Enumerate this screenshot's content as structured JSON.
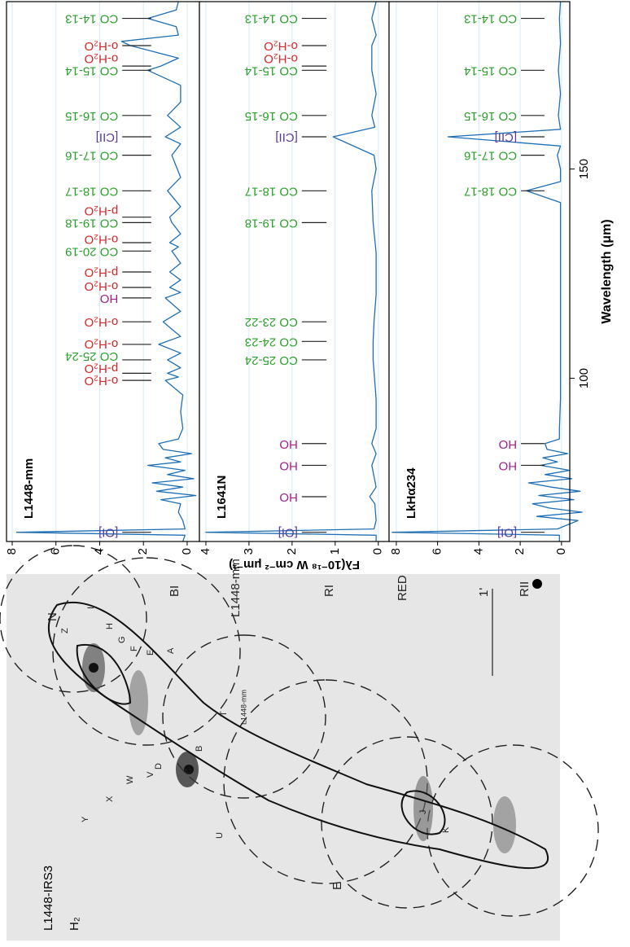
{
  "chart_data": [
    {
      "type": "line",
      "title": "L1448-mm",
      "xlim": [
        61,
        190
      ],
      "ylim": [
        -0.56,
        8.26
      ],
      "yticks": [
        0,
        2,
        4,
        6,
        8
      ],
      "grid": true,
      "series": [
        {
          "color": "#1f6fb5",
          "x": [
            61,
            62.5,
            63.2,
            64,
            66,
            68,
            70,
            71,
            72,
            73,
            74,
            75,
            76,
            77,
            78,
            79.2,
            80,
            81,
            82,
            83,
            84.4,
            85.5,
            88,
            92,
            96,
            99.5,
            100.3,
            101.2,
            102.5,
            104.4,
            106,
            108.1,
            110,
            113.5,
            116,
            119.2,
            120.5,
            121.7,
            123.5,
            125.4,
            127.5,
            130.4,
            131.4,
            132.4,
            134.5,
            137.2,
            138.5,
            141,
            144.8,
            148,
            153.3,
            156,
            157.7,
            160,
            162.8,
            166,
            170,
            173.6,
            174.6,
            176.5,
            179.5,
            180.5,
            182,
            184,
            186,
            188,
            190
          ],
          "values": [
            0.2,
            0.1,
            7.8,
            0.1,
            0.2,
            0.4,
            0.3,
            1.2,
            -0.4,
            1.4,
            0.2,
            1.6,
            -0.3,
            0.9,
            0.1,
            1.8,
            0.3,
            1.0,
            -0.2,
            1.1,
            1.3,
            0.4,
            0.2,
            0.3,
            0.2,
            1.0,
            0.4,
            0.9,
            0.3,
            0.9,
            0.3,
            1.3,
            0.3,
            1.1,
            0.3,
            1.0,
            0.3,
            0.8,
            0.3,
            0.8,
            0.3,
            0.7,
            0.4,
            0.8,
            0.3,
            0.7,
            0.8,
            0.3,
            0.9,
            0.3,
            0.7,
            0.3,
            1.0,
            0.3,
            0.9,
            0.3,
            0.3,
            1.8,
            1.2,
            0.4,
            2.6,
            3.0,
            0.4,
            0.5,
            1.8,
            0.5,
            0.4
          ]
        }
      ],
      "annotations": [
        {
          "x": 63.2,
          "label": "[OI]",
          "color": "#5b3a9e"
        },
        {
          "x": 99.5,
          "label": "o-H₂O",
          "color": "#d62728"
        },
        {
          "x": 101.2,
          "label": "p-H₂O",
          "color": "#d62728"
        },
        {
          "x": 104.4,
          "label": "CO 25-24",
          "color": "#2ca02c"
        },
        {
          "x": 108.1,
          "label": "o-H₂O",
          "color": "#d62728"
        },
        {
          "x": 113.5,
          "label": "o-H₂O",
          "color": "#d62728"
        },
        {
          "x": 119.2,
          "label": "HO",
          "color": "#a0228c"
        },
        {
          "x": 121.7,
          "label": "o-H₂O",
          "color": "#d62728"
        },
        {
          "x": 125.4,
          "label": "p-H₂O",
          "color": "#d62728"
        },
        {
          "x": 130.4,
          "label": "CO 20-19",
          "color": "#2ca02c"
        },
        {
          "x": 132.4,
          "label": "o-H₂O",
          "color": "#d62728"
        },
        {
          "x": 137.2,
          "label": "CO 19-18",
          "color": "#2ca02c"
        },
        {
          "x": 138.5,
          "label": "p-H₂O",
          "color": "#d62728"
        },
        {
          "x": 144.8,
          "label": "CO 18-17",
          "color": "#2ca02c"
        },
        {
          "x": 153.3,
          "label": "CO 17-16",
          "color": "#2ca02c"
        },
        {
          "x": 157.7,
          "label": "[CII]",
          "color": "#5b3a9e"
        },
        {
          "x": 162.8,
          "label": "CO 16-15",
          "color": "#2ca02c"
        },
        {
          "x": 173.6,
          "label": "CO 15-14",
          "color": "#2ca02c"
        },
        {
          "x": 174.6,
          "label": "o-H₂O",
          "color": "#d62728"
        },
        {
          "x": 179.5,
          "label": "o-H₂O",
          "color": "#d62728"
        },
        {
          "x": 186.0,
          "label": "CO 14-13",
          "color": "#2ca02c"
        }
      ]
    },
    {
      "type": "line",
      "title": "L1641N",
      "xlim": [
        61,
        190
      ],
      "ylim": [
        -0.25,
        4.15
      ],
      "yticks": [
        0,
        1,
        2,
        3,
        4
      ],
      "grid": true,
      "ylabel": "Fλ(10⁻¹⁸ W cm⁻² μm⁻¹)",
      "series": [
        {
          "color": "#1f6fb5",
          "x": [
            61,
            62.5,
            63.2,
            64,
            66,
            70,
            71.7,
            74,
            79.2,
            82,
            84.4,
            88,
            95,
            104.4,
            108.8,
            113.5,
            120,
            130,
            137.2,
            144.8,
            150,
            153.3,
            157.7,
            160,
            162.8,
            168,
            173.6,
            174.6,
            179.5,
            182,
            186,
            190
          ],
          "values": [
            0.05,
            0.05,
            4.0,
            0.1,
            0.05,
            0.08,
            0.2,
            0.05,
            0.15,
            0.05,
            0.15,
            0.05,
            0.05,
            0.12,
            0.12,
            0.1,
            0.05,
            0.05,
            0.12,
            0.15,
            0.05,
            0.1,
            1.05,
            0.08,
            0.15,
            0.05,
            0.15,
            0.15,
            0.15,
            0.05,
            0.15,
            0.05
          ]
        }
      ],
      "annotations": [
        {
          "x": 63.2,
          "label": "[OI]",
          "color": "#5b3a9e"
        },
        {
          "x": 71.7,
          "label": "HO",
          "color": "#a0228c"
        },
        {
          "x": 79.2,
          "label": "HO",
          "color": "#a0228c"
        },
        {
          "x": 84.4,
          "label": "HO",
          "color": "#a0228c"
        },
        {
          "x": 104.4,
          "label": "CO 25-24",
          "color": "#2ca02c"
        },
        {
          "x": 108.8,
          "label": "CO 24-23",
          "color": "#2ca02c"
        },
        {
          "x": 113.5,
          "label": "CO 23-22",
          "color": "#2ca02c"
        },
        {
          "x": 137.2,
          "label": "CO 19-18",
          "color": "#2ca02c"
        },
        {
          "x": 144.8,
          "label": "CO 18-17",
          "color": "#2ca02c"
        },
        {
          "x": 157.7,
          "label": "[CII]",
          "color": "#5b3a9e"
        },
        {
          "x": 162.8,
          "label": "CO 16-15",
          "color": "#2ca02c"
        },
        {
          "x": 173.6,
          "label": "CO 15-14",
          "color": "#2ca02c"
        },
        {
          "x": 174.6,
          "label": "o-H₂O",
          "color": "#d62728"
        },
        {
          "x": 179.5,
          "label": "o-H₂O",
          "color": "#d62728"
        },
        {
          "x": 186.0,
          "label": "CO 14-13",
          "color": "#2ca02c"
        }
      ]
    },
    {
      "type": "line",
      "title": "LkHα234",
      "xlim": [
        61,
        190
      ],
      "ylim": [
        -0.4,
        8.35
      ],
      "yticks": [
        0,
        2,
        4,
        6,
        8
      ],
      "grid": true,
      "xticks": [
        100,
        150
      ],
      "xlabel": "Wavelength (μm)",
      "series": [
        {
          "color": "#1f6fb5",
          "x": [
            61,
            62.5,
            63.2,
            64,
            66,
            67,
            68,
            69,
            70,
            71,
            72,
            73,
            74,
            75,
            76,
            77,
            78,
            79.2,
            80,
            81,
            82,
            83,
            84.4,
            85.5,
            88,
            95,
            105,
            120,
            135,
            142,
            144.8,
            147,
            150,
            153.3,
            155.5,
            157.7,
            159.5,
            162.8,
            168,
            173.6,
            180,
            186,
            190
          ],
          "values": [
            0.1,
            0.1,
            8.2,
            0.2,
            -0.8,
            1.2,
            -1.0,
            0.6,
            1.4,
            -0.6,
            1.1,
            -0.9,
            0.5,
            1.6,
            -0.5,
            0.8,
            -0.4,
            1.0,
            0.2,
            0.9,
            -0.3,
            0.7,
            0.8,
            0.1,
            0.1,
            0.05,
            0.05,
            0.05,
            0.05,
            0.05,
            1.7,
            0.05,
            0.05,
            0.2,
            0.05,
            5.5,
            0.05,
            0.15,
            0.05,
            0.15,
            0.05,
            0.1,
            0.05
          ]
        }
      ],
      "annotations": [
        {
          "x": 63.2,
          "label": "[OI]",
          "color": "#5b3a9e"
        },
        {
          "x": 79.2,
          "label": "HO",
          "color": "#a0228c"
        },
        {
          "x": 84.4,
          "label": "HO",
          "color": "#a0228c"
        },
        {
          "x": 144.8,
          "label": "CO 18-17",
          "color": "#2ca02c"
        },
        {
          "x": 153.3,
          "label": "CO 17-16",
          "color": "#2ca02c"
        },
        {
          "x": 157.7,
          "label": "[CII]",
          "color": "#5b3a9e"
        },
        {
          "x": 162.8,
          "label": "CO 16-15",
          "color": "#2ca02c"
        },
        {
          "x": 173.6,
          "label": "CO 15-14",
          "color": "#2ca02c"
        },
        {
          "x": 186.0,
          "label": "CO 14-13",
          "color": "#2ca02c"
        }
      ]
    }
  ],
  "map": {
    "title": "L1448-IRS3",
    "subtitle": "H₂",
    "labels": [
      "N",
      "BI",
      "L1448-mm",
      "RI",
      "RED",
      "1'",
      "RII",
      "E",
      "U",
      "T",
      "A",
      "B",
      "C",
      "D",
      "E",
      "F",
      "G",
      "H",
      "I",
      "V",
      "W",
      "X",
      "Y",
      "Z",
      "J",
      "K",
      "L1448-mm"
    ]
  }
}
